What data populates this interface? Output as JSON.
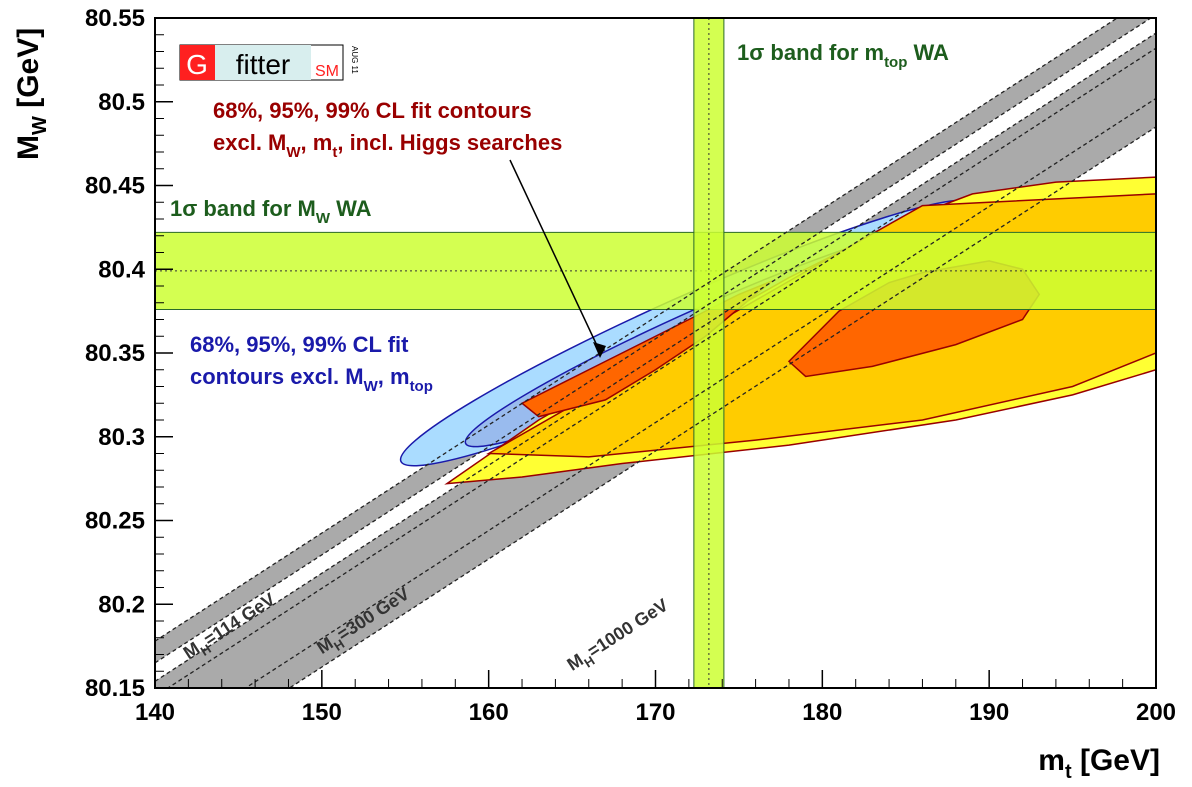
{
  "chart_data": {
    "type": "contour",
    "xlabel": "m",
    "xlabel_sub": "t",
    "xlabel_unit": " [GeV]",
    "ylabel": "M",
    "ylabel_sub": "W",
    "ylabel_unit": " [GeV]",
    "xlim": [
      140,
      200
    ],
    "ylim": [
      80.15,
      80.55
    ],
    "x_ticks": [
      {
        "value": 140,
        "label": "140"
      },
      {
        "value": 150,
        "label": "150"
      },
      {
        "value": 160,
        "label": "160"
      },
      {
        "value": 170,
        "label": "170"
      },
      {
        "value": 180,
        "label": "180"
      },
      {
        "value": 190,
        "label": "190"
      },
      {
        "value": 200,
        "label": "200"
      }
    ],
    "y_ticks": [
      {
        "value": 80.15,
        "label": "80.15"
      },
      {
        "value": 80.2,
        "label": "80.2"
      },
      {
        "value": 80.25,
        "label": "80.25"
      },
      {
        "value": 80.3,
        "label": "80.3"
      },
      {
        "value": 80.35,
        "label": "80.35"
      },
      {
        "value": 80.4,
        "label": "80.4"
      },
      {
        "value": 80.45,
        "label": "80.45"
      },
      {
        "value": 80.5,
        "label": "80.5"
      },
      {
        "value": 80.55,
        "label": "80.55"
      }
    ],
    "logo": {
      "g": "G",
      "fitter": "fitter",
      "sm": "SM",
      "date": "AUG 11"
    },
    "mw_band": {
      "center": 80.399,
      "low": 80.376,
      "high": 80.422,
      "color": "#ccff33",
      "label_prefix": "1σ band for M",
      "label_sub": "W",
      "label_suffix": " WA"
    },
    "mt_band": {
      "center": 173.2,
      "low": 172.3,
      "high": 174.1,
      "color": "#ccff33",
      "label_prefix": "1σ band for m",
      "label_sub": "top",
      "label_suffix": " WA"
    },
    "higgs_lines": {
      "slope_per_gev": 0.00645,
      "color": "#aaaaaa",
      "lines": [
        {
          "mh": 114,
          "label_prefix": "M",
          "label_sub": "H",
          "label_suffix": "=114 GeV",
          "label_x": 142,
          "label_y": 80.167,
          "w_at_140": 80.178
        },
        {
          "mh": 300,
          "label_prefix": "M",
          "label_sub": "H",
          "label_suffix": "=300 GeV",
          "label_x": 150,
          "label_y": 80.17,
          "w_at_140": 80.152
        },
        {
          "mh": 1000,
          "label_prefix": "M",
          "label_sub": "H",
          "label_suffix": "=1000 GeV",
          "label_x": 165,
          "label_y": 80.16,
          "w_at_140": 80.098
        }
      ]
    },
    "blue_contours": {
      "label_lines": [
        "68%, 95%, 99% CL fit",
        "contours excl. M",
        "W",
        ", m",
        "top"
      ],
      "color": "#1a1aaa",
      "ellipses": [
        {
          "cl": "99%",
          "cx": 172,
          "cy": 80.362,
          "a": 36,
          "b": 0.038,
          "angle": 0.42,
          "fill": "#aadcff"
        },
        {
          "cl": "95%",
          "cx": 173,
          "cy": 80.36,
          "a": 30,
          "b": 0.03,
          "angle": 0.42,
          "fill": "#99bbee"
        },
        {
          "cl": "68%",
          "cx": 175,
          "cy": 80.36,
          "a": 22,
          "b": 0.02,
          "angle": 0.42,
          "fill": "#4488dd"
        }
      ]
    },
    "red_contours": {
      "label_lines": [
        "68%, 95%, 99% CL fit contours",
        "excl. M",
        "W",
        ", m",
        "t",
        ", incl. Higgs searches"
      ],
      "color": "#990000",
      "regions": [
        {
          "cl": "99%",
          "fill": "#ffff33"
        },
        {
          "cl": "95%",
          "fill": "#ffcc00"
        },
        {
          "cl": "68%",
          "fill": "#ff6600"
        }
      ]
    }
  }
}
